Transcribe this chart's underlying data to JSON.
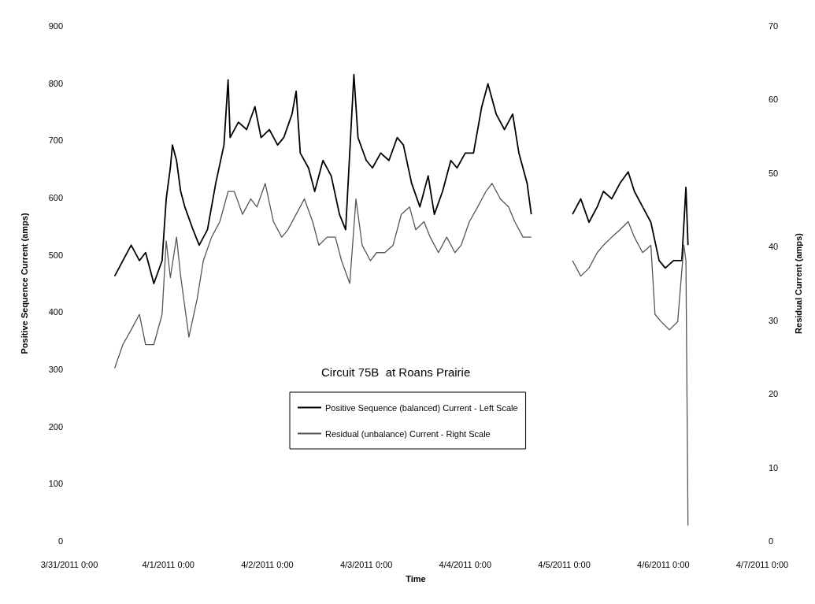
{
  "chart_data": {
    "type": "line",
    "title": "Circuit 75B  at Roans Prairie",
    "xlabel": "Time",
    "ylabel": "Positive Sequence Current (amps)",
    "y2label": "Residual Current (amps)",
    "xlim": [
      "2011-03-31T00:00",
      "2011-04-07T00:00"
    ],
    "xticks": [
      {
        "value": "2011-03-31T00:00",
        "label": "3/31/2011 0:00"
      },
      {
        "value": "2011-04-01T00:00",
        "label": "4/1/2011 0:00"
      },
      {
        "value": "2011-04-02T00:00",
        "label": "4/2/2011 0:00"
      },
      {
        "value": "2011-04-03T00:00",
        "label": "4/3/2011 0:00"
      },
      {
        "value": "2011-04-04T00:00",
        "label": "4/4/2011 0:00"
      },
      {
        "value": "2011-04-05T00:00",
        "label": "4/5/2011 0:00"
      },
      {
        "value": "2011-04-06T00:00",
        "label": "4/6/2011 0:00"
      },
      {
        "value": "2011-04-07T00:00",
        "label": "4/7/2011 0:00"
      }
    ],
    "ylim": [
      0,
      900
    ],
    "yticks": [
      0,
      100,
      200,
      300,
      400,
      500,
      600,
      700,
      800,
      900
    ],
    "y2lim": [
      0,
      70
    ],
    "y2ticks": [
      0,
      10,
      20,
      30,
      40,
      50,
      60,
      70
    ],
    "grid": false,
    "legend": "bottom",
    "marker": "none",
    "line_style": "solid",
    "series": [
      {
        "name": "Positive Sequence (balanced) Current - Left Scale",
        "color": "#000000",
        "x": [
          "2011-03-31T11:00",
          "2011-03-31T13:00",
          "2011-03-31T15:00",
          "2011-03-31T17:00",
          "2011-03-31T18:30",
          "2011-03-31T20:30",
          "2011-03-31T22:30",
          "2011-03-31T23:30",
          "2011-04-01T00:30",
          "2011-04-01T01:00",
          "2011-04-01T02:00",
          "2011-04-01T03:00",
          "2011-04-01T04:00",
          "2011-04-01T06:00",
          "2011-04-01T07:30",
          "2011-04-01T09:30",
          "2011-04-01T11:30",
          "2011-04-01T13:30",
          "2011-04-01T14:30",
          "2011-04-01T15:00",
          "2011-04-01T17:00",
          "2011-04-01T19:00",
          "2011-04-01T21:00",
          "2011-04-01T22:30",
          "2011-04-02T00:30",
          "2011-04-02T02:30",
          "2011-04-02T04:00",
          "2011-04-02T06:00",
          "2011-04-02T07:00",
          "2011-04-02T08:00",
          "2011-04-02T10:00",
          "2011-04-02T11:30",
          "2011-04-02T13:30",
          "2011-04-02T15:30",
          "2011-04-02T17:30",
          "2011-04-02T19:00",
          "2011-04-02T21:00",
          "2011-04-02T22:00",
          "2011-04-03T00:00",
          "2011-04-03T01:30",
          "2011-04-03T03:30",
          "2011-04-03T05:30",
          "2011-04-03T07:30",
          "2011-04-03T09:00",
          "2011-04-03T11:00",
          "2011-04-03T13:00",
          "2011-04-03T15:00",
          "2011-04-03T16:30",
          "2011-04-03T18:30",
          "2011-04-03T20:30",
          "2011-04-03T22:00",
          "2011-04-04T00:00",
          "2011-04-04T02:00",
          "2011-04-04T04:00",
          "2011-04-04T05:30",
          "2011-04-04T07:30",
          "2011-04-04T09:30",
          "2011-04-04T11:30",
          "2011-04-04T13:00",
          "2011-04-04T15:00",
          "2011-04-04T16:00",
          "2011-04-05T00:00",
          "2011-04-05T02:00",
          "2011-04-05T04:00",
          "2011-04-05T06:00",
          "2011-04-05T08:00",
          "2011-04-05T09:30",
          "2011-04-05T11:30",
          "2011-04-05T13:30",
          "2011-04-05T15:30",
          "2011-04-05T17:00",
          "2011-04-05T19:00",
          "2011-04-05T21:00",
          "2011-04-05T23:00",
          "2011-04-06T00:30",
          "2011-04-06T02:30",
          "2011-04-06T04:30",
          "2011-04-06T05:30",
          "2011-04-06T06:00"
        ],
        "values": [
          463,
          490,
          517,
          490,
          504,
          450,
          490,
          598,
          652,
          692,
          665,
          611,
          584,
          544,
          517,
          544,
          625,
          692,
          806,
          705,
          732,
          719,
          759,
          705,
          719,
          692,
          705,
          746,
          786,
          678,
          652,
          611,
          665,
          638,
          571,
          544,
          815,
          705,
          665,
          652,
          678,
          665,
          705,
          692,
          625,
          584,
          638,
          571,
          611,
          665,
          652,
          678,
          678,
          759,
          799,
          746,
          719,
          746,
          678,
          625,
          571,
          null,
          571,
          598,
          557,
          584,
          611,
          598,
          625,
          645,
          611,
          584,
          557,
          490,
          477,
          490,
          490,
          618,
          517
        ]
      },
      {
        "name": "Residual (unbalance) Current - Right Scale",
        "color": "#555555",
        "axis": "y2",
        "x": [
          "2011-03-31T11:00",
          "2011-03-31T13:00",
          "2011-03-31T15:00",
          "2011-03-31T17:00",
          "2011-03-31T18:30",
          "2011-03-31T20:30",
          "2011-03-31T22:30",
          "2011-03-31T23:30",
          "2011-04-01T00:30",
          "2011-04-01T02:00",
          "2011-04-01T03:00",
          "2011-04-01T05:00",
          "2011-04-01T07:00",
          "2011-04-01T08:30",
          "2011-04-01T10:30",
          "2011-04-01T12:30",
          "2011-04-01T14:30",
          "2011-04-01T16:00",
          "2011-04-01T18:00",
          "2011-04-01T20:00",
          "2011-04-01T21:30",
          "2011-04-01T23:30",
          "2011-04-02T01:30",
          "2011-04-02T03:30",
          "2011-04-02T05:00",
          "2011-04-02T07:00",
          "2011-04-02T09:00",
          "2011-04-02T11:00",
          "2011-04-02T12:30",
          "2011-04-02T14:30",
          "2011-04-02T16:30",
          "2011-04-02T18:00",
          "2011-04-02T20:00",
          "2011-04-02T21:30",
          "2011-04-02T23:00",
          "2011-04-03T01:00",
          "2011-04-03T02:30",
          "2011-04-03T04:30",
          "2011-04-03T06:30",
          "2011-04-03T08:30",
          "2011-04-03T10:30",
          "2011-04-03T12:00",
          "2011-04-03T14:00",
          "2011-04-03T15:30",
          "2011-04-03T17:30",
          "2011-04-03T19:30",
          "2011-04-03T21:30",
          "2011-04-03T23:00",
          "2011-04-04T01:00",
          "2011-04-04T03:00",
          "2011-04-04T05:00",
          "2011-04-04T06:30",
          "2011-04-04T08:30",
          "2011-04-04T10:30",
          "2011-04-04T12:00",
          "2011-04-04T14:00",
          "2011-04-04T16:00",
          "2011-04-05T00:00",
          "2011-04-05T02:00",
          "2011-04-05T04:00",
          "2011-04-05T06:00",
          "2011-04-05T08:00",
          "2011-04-05T09:30",
          "2011-04-05T11:30",
          "2011-04-05T13:30",
          "2011-04-05T15:30",
          "2011-04-05T17:00",
          "2011-04-05T19:00",
          "2011-04-05T21:00",
          "2011-04-05T22:00",
          "2011-04-05T23:30",
          "2011-04-06T01:30",
          "2011-04-06T03:30",
          "2011-04-06T05:00",
          "2011-04-06T05:30",
          "2011-04-06T06:00"
        ],
        "values": [
          23.5,
          26.7,
          28.7,
          30.8,
          26.7,
          26.7,
          30.8,
          40.8,
          35.8,
          41.3,
          36.0,
          27.7,
          32.9,
          38.1,
          41.3,
          43.4,
          47.5,
          47.5,
          44.4,
          46.5,
          45.4,
          48.6,
          43.4,
          41.3,
          42.3,
          44.4,
          46.5,
          43.4,
          40.2,
          41.3,
          41.3,
          38.1,
          35.0,
          46.5,
          40.2,
          38.1,
          39.2,
          39.2,
          40.2,
          44.4,
          45.4,
          42.3,
          43.4,
          41.3,
          39.2,
          41.3,
          39.2,
          40.2,
          43.4,
          45.4,
          47.5,
          48.6,
          46.5,
          45.4,
          43.4,
          41.3,
          41.3,
          null,
          38.1,
          36.0,
          37.1,
          39.2,
          40.2,
          41.3,
          42.3,
          43.4,
          41.3,
          39.2,
          40.2,
          30.8,
          29.8,
          28.7,
          29.8,
          40.2,
          38.1,
          2.1
        ]
      }
    ]
  }
}
